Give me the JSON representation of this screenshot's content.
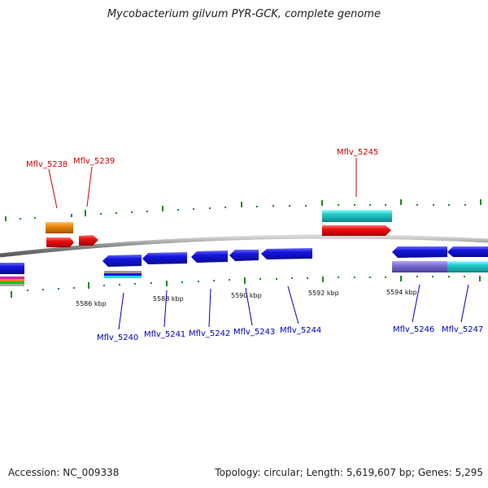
{
  "title": "Mycobacterium gilvum PYR-GCK, complete genome",
  "footer": {
    "accession": "Accession: NC_009338",
    "summary": "Topology: circular; Length: 5,619,607 bp; Genes: 5,295"
  },
  "colors": {
    "backbone": "#8a8a8a",
    "tick": "#1a8a1a",
    "label_red": "#cc0000",
    "label_blue": "#0000bb",
    "gene_blue": "#1515e0",
    "gene_red": "#ee1111",
    "gene_cyan": "#22cccc",
    "gene_orange": "#ee8811",
    "gene_slate": "#7a6fd0"
  },
  "kbp_labels": [
    "5586 kbp",
    "5588 kbp",
    "5590 kbp",
    "5592 kbp",
    "5594 kbp"
  ],
  "gene_labels_top": [
    "Mflv_5238",
    "Mflv_5239",
    "Mflv_5245"
  ],
  "gene_labels_bottom": [
    "Mflv_5240",
    "Mflv_5241",
    "Mflv_5242",
    "Mflv_5243",
    "Mflv_5244",
    "Mflv_5246",
    "Mflv_5247"
  ]
}
